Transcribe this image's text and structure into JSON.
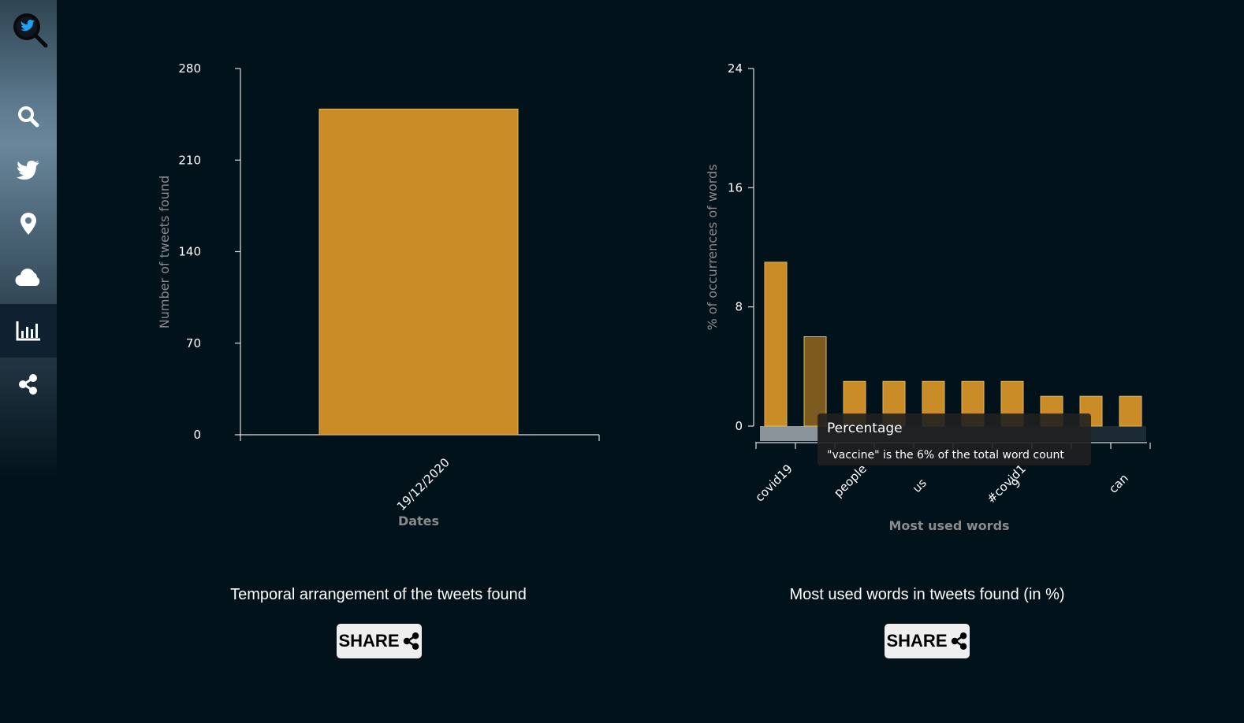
{
  "sidebar": {
    "items": [
      {
        "name": "search",
        "icon": "search-icon"
      },
      {
        "name": "twitter",
        "icon": "twitter-bird-icon"
      },
      {
        "name": "location",
        "icon": "map-pin-icon"
      },
      {
        "name": "cloud",
        "icon": "cloud-icon"
      },
      {
        "name": "charts",
        "icon": "bar-chart-icon",
        "active": true
      },
      {
        "name": "share",
        "icon": "share-icon"
      }
    ]
  },
  "colors": {
    "bar": "#c98c26",
    "bar_hover": "#7d5b1f",
    "axis": "#dddddd",
    "axis_title": "#8a8a8a",
    "background": "#02121b"
  },
  "chart_data": [
    {
      "type": "bar",
      "categories": [
        "19/12/2020"
      ],
      "values": [
        249
      ],
      "xlabel": "Dates",
      "ylabel": "Number of tweets found",
      "ylim": [
        0,
        280
      ],
      "yticks": [
        0,
        70,
        140,
        210,
        280
      ]
    },
    {
      "type": "bar",
      "categories": [
        "covid19",
        "vaccine",
        "people",
        "",
        "us",
        "",
        "#covid1\n9",
        "",
        "",
        "can"
      ],
      "tick_labels": [
        "covid19",
        "people",
        "us",
        "#covid1\n9",
        "can"
      ],
      "values": [
        11,
        6,
        3,
        3,
        3,
        3,
        3,
        2,
        2,
        2
      ],
      "xlabel": "Most used words",
      "ylabel": "% of occurrences of words",
      "ylim": [
        0,
        24
      ],
      "yticks": [
        0,
        8,
        16,
        24
      ],
      "highlighted_index": 1,
      "tooltip": {
        "title": "Percentage",
        "text": "\"vaccine\" is the 6% of the total word count"
      }
    }
  ],
  "captions": {
    "left": "Temporal arrangement of the tweets found",
    "right": "Most used words in tweets found (in %)"
  },
  "share": {
    "label": "SHARE"
  }
}
